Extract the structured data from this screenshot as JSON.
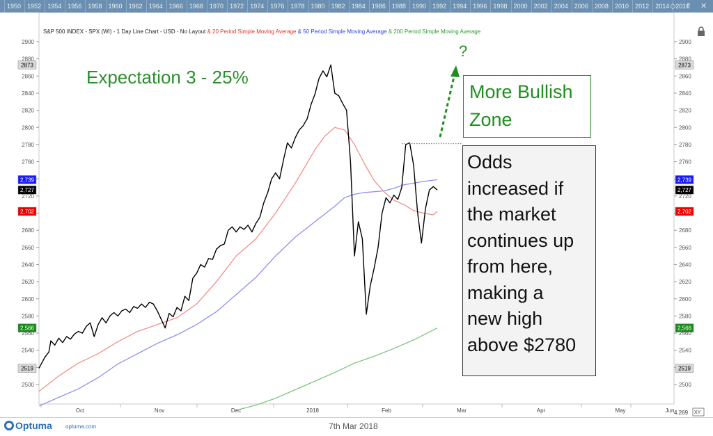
{
  "header": {
    "parts": [
      {
        "text": "S&P 500 INDEX - SPX (WI) - 1 Day Line Chart - USD - No Layout",
        "color": "#222222"
      },
      {
        "text": " & 20 Period Simple Moving Average",
        "color": "#e0332b"
      },
      {
        "text": " & 50 Period Simple Moving Average",
        "color": "#2b3fe0"
      },
      {
        "text": " & 200 Period Simple Moving Average",
        "color": "#2a9a2a"
      }
    ]
  },
  "year_strip": [
    "1950",
    "1952",
    "1954",
    "1956",
    "1958",
    "1960",
    "1962",
    "1964",
    "1966",
    "1968",
    "1970",
    "1972",
    "1974",
    "1976",
    "1978",
    "1980",
    "1982",
    "1984",
    "1986",
    "1988",
    "1990",
    "1992",
    "1994",
    "1996",
    "1998",
    "2000",
    "2002",
    "2004",
    "2006",
    "2008",
    "2010",
    "2012",
    "2014",
    "2016"
  ],
  "annotations": {
    "expectation": "Expectation 3 - 25%",
    "question": "?",
    "bullish_zone": [
      "More Bullish",
      "Zone"
    ],
    "odds": [
      "Odds",
      "increased if",
      "the market",
      "continues up",
      "from here,",
      "making a",
      "new high",
      "above $2780"
    ]
  },
  "footer": {
    "logo": "Optuma",
    "site": "optuma.com",
    "date": "7th Mar 2018",
    "scale_badge": "4.269",
    "xy_badge": "XY"
  },
  "icons": [
    "lock-icon",
    "diamond-icon",
    "scroll-up-icon",
    "close-icon"
  ],
  "colors": {
    "price": "#000000",
    "ma20": "#f0908a",
    "ma50": "#8f8ff0",
    "ma200": "#7fc27f",
    "annotation_green": "#1e8f1e"
  },
  "chart_data": {
    "type": "line",
    "ylim": [
      2480,
      2900
    ],
    "y_ticks": [
      2500,
      2520,
      2540,
      2560,
      2580,
      2600,
      2620,
      2640,
      2660,
      2680,
      2700,
      2720,
      2740,
      2760,
      2780,
      2800,
      2820,
      2840,
      2860,
      2880,
      2900
    ],
    "x_labels": [
      "Oct",
      "Nov",
      "Dec",
      "2018",
      "Feb",
      "Mar",
      "Apr",
      "May",
      "Jun"
    ],
    "grid": false,
    "price_badges": [
      {
        "value": "2873",
        "y": 2873,
        "bg": "#d8d8d8",
        "fg": "#000"
      },
      {
        "value": "2,739",
        "y": 2739,
        "bg": "#1a1aff",
        "fg": "#fff"
      },
      {
        "value": "2,727",
        "y": 2727,
        "bg": "#000",
        "fg": "#fff"
      },
      {
        "value": "2,702",
        "y": 2702,
        "bg": "#e00",
        "fg": "#fff"
      },
      {
        "value": "2,566",
        "y": 2566,
        "bg": "#1a8a1a",
        "fg": "#fff"
      },
      {
        "value": "2519",
        "y": 2519,
        "bg": "#d8d8d8",
        "fg": "#000"
      }
    ],
    "resistance_level": 2781,
    "series": [
      {
        "id": "price",
        "points": [
          [
            0,
            2519
          ],
          [
            3,
            2532
          ],
          [
            5,
            2538
          ],
          [
            6,
            2551
          ],
          [
            8,
            2546
          ],
          [
            10,
            2554
          ],
          [
            12,
            2549
          ],
          [
            14,
            2556
          ],
          [
            16,
            2553
          ],
          [
            18,
            2559
          ],
          [
            20,
            2562
          ],
          [
            22,
            2560
          ],
          [
            24,
            2568
          ],
          [
            26,
            2572
          ],
          [
            28,
            2556
          ],
          [
            30,
            2570
          ],
          [
            32,
            2578
          ],
          [
            34,
            2572
          ],
          [
            36,
            2580
          ],
          [
            38,
            2584
          ],
          [
            40,
            2580
          ],
          [
            42,
            2586
          ],
          [
            44,
            2588
          ],
          [
            46,
            2584
          ],
          [
            48,
            2591
          ],
          [
            50,
            2589
          ],
          [
            52,
            2594
          ],
          [
            54,
            2590
          ],
          [
            56,
            2596
          ],
          [
            58,
            2594
          ],
          [
            60,
            2586
          ],
          [
            62,
            2576
          ],
          [
            64,
            2566
          ],
          [
            66,
            2583
          ],
          [
            68,
            2579
          ],
          [
            70,
            2590
          ],
          [
            72,
            2586
          ],
          [
            74,
            2603
          ],
          [
            76,
            2598
          ],
          [
            78,
            2624
          ],
          [
            80,
            2630
          ],
          [
            82,
            2640
          ],
          [
            84,
            2637
          ],
          [
            86,
            2647
          ],
          [
            88,
            2646
          ],
          [
            90,
            2658
          ],
          [
            92,
            2662
          ],
          [
            94,
            2664
          ],
          [
            96,
            2680
          ],
          [
            98,
            2684
          ],
          [
            100,
            2678
          ],
          [
            102,
            2684
          ],
          [
            104,
            2681
          ],
          [
            106,
            2686
          ],
          [
            108,
            2678
          ],
          [
            110,
            2688
          ],
          [
            112,
            2695
          ],
          [
            114,
            2712
          ],
          [
            116,
            2724
          ],
          [
            118,
            2740
          ],
          [
            120,
            2747
          ],
          [
            122,
            2740
          ],
          [
            124,
            2762
          ],
          [
            126,
            2782
          ],
          [
            128,
            2776
          ],
          [
            130,
            2788
          ],
          [
            132,
            2797
          ],
          [
            134,
            2802
          ],
          [
            136,
            2810
          ],
          [
            138,
            2827
          ],
          [
            140,
            2839
          ],
          [
            142,
            2857
          ],
          [
            144,
            2866
          ],
          [
            146,
            2859
          ],
          [
            148,
            2873
          ],
          [
            150,
            2840
          ],
          [
            152,
            2837
          ],
          [
            154,
            2828
          ],
          [
            156,
            2820
          ],
          [
            158,
            2760
          ],
          [
            160,
            2650
          ],
          [
            162,
            2690
          ],
          [
            164,
            2670
          ],
          [
            166,
            2582
          ],
          [
            168,
            2615
          ],
          [
            170,
            2636
          ],
          [
            172,
            2660
          ],
          [
            174,
            2700
          ],
          [
            176,
            2718
          ],
          [
            178,
            2712
          ],
          [
            180,
            2721
          ],
          [
            182,
            2716
          ],
          [
            184,
            2730
          ],
          [
            186,
            2780
          ],
          [
            188,
            2782
          ],
          [
            190,
            2756
          ],
          [
            192,
            2701
          ],
          [
            194,
            2665
          ],
          [
            196,
            2705
          ],
          [
            198,
            2727
          ],
          [
            200,
            2731
          ],
          [
            202,
            2727
          ]
        ]
      },
      {
        "id": "ma20",
        "points": [
          [
            0,
            2492
          ],
          [
            10,
            2510
          ],
          [
            20,
            2525
          ],
          [
            30,
            2536
          ],
          [
            40,
            2550
          ],
          [
            50,
            2562
          ],
          [
            60,
            2570
          ],
          [
            70,
            2578
          ],
          [
            80,
            2594
          ],
          [
            90,
            2620
          ],
          [
            100,
            2650
          ],
          [
            110,
            2670
          ],
          [
            120,
            2700
          ],
          [
            130,
            2735
          ],
          [
            140,
            2774
          ],
          [
            145,
            2790
          ],
          [
            150,
            2800
          ],
          [
            155,
            2797
          ],
          [
            160,
            2780
          ],
          [
            165,
            2758
          ],
          [
            170,
            2738
          ],
          [
            175,
            2725
          ],
          [
            180,
            2715
          ],
          [
            185,
            2710
          ],
          [
            190,
            2703
          ],
          [
            195,
            2700
          ],
          [
            200,
            2698
          ],
          [
            202,
            2702
          ]
        ]
      },
      {
        "id": "ma50",
        "points": [
          [
            0,
            2475
          ],
          [
            10,
            2485
          ],
          [
            20,
            2495
          ],
          [
            30,
            2508
          ],
          [
            40,
            2524
          ],
          [
            50,
            2536
          ],
          [
            60,
            2548
          ],
          [
            70,
            2558
          ],
          [
            80,
            2570
          ],
          [
            90,
            2585
          ],
          [
            100,
            2605
          ],
          [
            110,
            2625
          ],
          [
            120,
            2650
          ],
          [
            130,
            2672
          ],
          [
            140,
            2690
          ],
          [
            150,
            2708
          ],
          [
            155,
            2718
          ],
          [
            160,
            2722
          ],
          [
            165,
            2724
          ],
          [
            170,
            2725
          ],
          [
            175,
            2726
          ],
          [
            180,
            2729
          ],
          [
            185,
            2733
          ],
          [
            190,
            2735
          ],
          [
            195,
            2737
          ],
          [
            202,
            2739
          ]
        ]
      },
      {
        "id": "ma200",
        "points": [
          [
            100,
            2470
          ],
          [
            110,
            2476
          ],
          [
            120,
            2484
          ],
          [
            130,
            2494
          ],
          [
            140,
            2504
          ],
          [
            150,
            2514
          ],
          [
            160,
            2525
          ],
          [
            170,
            2533
          ],
          [
            180,
            2542
          ],
          [
            190,
            2552
          ],
          [
            202,
            2566
          ]
        ]
      }
    ]
  }
}
